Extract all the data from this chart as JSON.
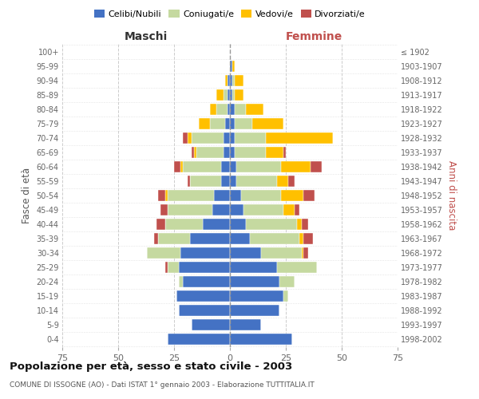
{
  "age_groups": [
    "0-4",
    "5-9",
    "10-14",
    "15-19",
    "20-24",
    "25-29",
    "30-34",
    "35-39",
    "40-44",
    "45-49",
    "50-54",
    "55-59",
    "60-64",
    "65-69",
    "70-74",
    "75-79",
    "80-84",
    "85-89",
    "90-94",
    "95-99",
    "100+"
  ],
  "birth_years": [
    "1998-2002",
    "1993-1997",
    "1988-1992",
    "1983-1987",
    "1978-1982",
    "1973-1977",
    "1968-1972",
    "1963-1967",
    "1958-1962",
    "1953-1957",
    "1948-1952",
    "1943-1947",
    "1938-1942",
    "1933-1937",
    "1928-1932",
    "1923-1927",
    "1918-1922",
    "1913-1917",
    "1908-1912",
    "1903-1907",
    "≤ 1902"
  ],
  "maschi_celibe": [
    28,
    17,
    23,
    24,
    21,
    23,
    22,
    18,
    12,
    8,
    7,
    4,
    4,
    3,
    3,
    2,
    1,
    1,
    1,
    0,
    0
  ],
  "maschi_coniugato": [
    0,
    0,
    0,
    0,
    2,
    5,
    15,
    14,
    17,
    20,
    21,
    14,
    17,
    12,
    14,
    7,
    5,
    2,
    0,
    0,
    0
  ],
  "maschi_vedovo": [
    0,
    0,
    0,
    0,
    0,
    0,
    0,
    0,
    0,
    0,
    1,
    0,
    1,
    1,
    2,
    5,
    3,
    3,
    1,
    0,
    0
  ],
  "maschi_divorziato": [
    0,
    0,
    0,
    0,
    0,
    1,
    0,
    2,
    4,
    3,
    3,
    1,
    3,
    1,
    2,
    0,
    0,
    0,
    0,
    0,
    0
  ],
  "femmine_nubile": [
    28,
    14,
    22,
    24,
    22,
    21,
    14,
    9,
    7,
    6,
    5,
    3,
    3,
    2,
    2,
    2,
    2,
    1,
    1,
    1,
    0
  ],
  "femmine_coniugata": [
    0,
    0,
    0,
    2,
    7,
    18,
    18,
    22,
    23,
    18,
    18,
    18,
    20,
    14,
    14,
    8,
    5,
    1,
    1,
    0,
    0
  ],
  "femmine_vedova": [
    0,
    0,
    0,
    0,
    0,
    0,
    1,
    2,
    2,
    5,
    10,
    5,
    13,
    8,
    30,
    14,
    8,
    4,
    4,
    1,
    0
  ],
  "femmine_divorziata": [
    0,
    0,
    0,
    0,
    0,
    0,
    2,
    4,
    3,
    2,
    5,
    3,
    5,
    1,
    0,
    0,
    0,
    0,
    0,
    0,
    0
  ],
  "color_celibe": "#4472c4",
  "color_coniugato": "#c5d9a0",
  "color_vedovo": "#ffc000",
  "color_divorziato": "#c0504d",
  "xlim": 75,
  "bg_color": "#ffffff",
  "grid_color": "#cccccc",
  "title": "Popolazione per età, sesso e stato civile - 2003",
  "subtitle": "COMUNE DI ISSOGNE (AO) - Dati ISTAT 1° gennaio 2003 - Elaborazione TUTTITALIA.IT",
  "label_maschi": "Maschi",
  "label_femmine": "Femmine",
  "ylabel_left": "Fasce di età",
  "ylabel_right": "Anni di nascita",
  "legend_labels": [
    "Celibi/Nubili",
    "Coniugati/e",
    "Vedovi/e",
    "Divorziati/e"
  ]
}
